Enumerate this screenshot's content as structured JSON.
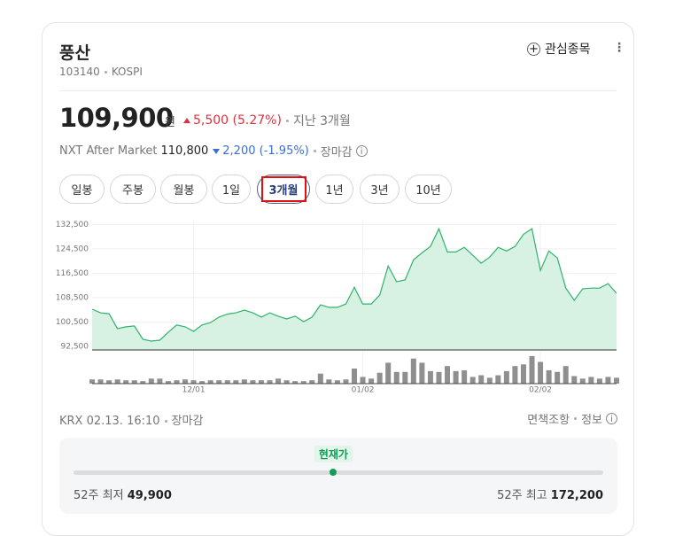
{
  "header": {
    "name": "풍산",
    "code": "103140",
    "market": "KOSPI",
    "watch": "관심종목"
  },
  "price": {
    "current": {
      "value": 109900,
      "label": "109,900"
    },
    "unit": "원",
    "change": "5,500 (5.27%)",
    "period": "지난 3개월"
  },
  "after_market": {
    "label": "NXT After Market",
    "price": "110,800",
    "change": "2,200 (-1.95%)",
    "status": "장마감"
  },
  "periods": {
    "options": [
      "일봉",
      "주봉",
      "월봉",
      "1일",
      "3개월",
      "1년",
      "3년",
      "10년"
    ],
    "selected": 4
  },
  "chart_data": {
    "type": "line",
    "categories": [
      null,
      null,
      null,
      null,
      null,
      null,
      null,
      null,
      null,
      null,
      null,
      null,
      "12/01",
      null,
      null,
      null,
      null,
      null,
      null,
      null,
      null,
      null,
      null,
      null,
      null,
      null,
      null,
      null,
      null,
      null,
      null,
      null,
      "01/02",
      null,
      null,
      null,
      null,
      null,
      null,
      null,
      null,
      null,
      null,
      null,
      null,
      null,
      null,
      null,
      null,
      null,
      null,
      null,
      null,
      "02/02",
      null,
      null,
      null,
      null,
      null,
      null,
      null,
      null,
      null
    ],
    "series": [
      {
        "color": "#2fb36b",
        "fill": "#d7f2e2",
        "values": [
          104680,
          103500,
          103200,
          98300,
          98900,
          99200,
          94800,
          94200,
          94500,
          97100,
          99500,
          98900,
          97400,
          99500,
          100300,
          102100,
          103100,
          103500,
          104400,
          103500,
          102100,
          103500,
          102400,
          101500,
          102400,
          100600,
          102100,
          106100,
          105300,
          105300,
          106400,
          111900,
          106400,
          106400,
          109300,
          118900,
          113700,
          114300,
          120900,
          123200,
          125300,
          131100,
          123500,
          123500,
          125000,
          122400,
          119800,
          121800,
          125000,
          123800,
          125300,
          129300,
          131100,
          117400,
          123800,
          121500,
          111600,
          107600,
          111400,
          111600,
          111600,
          113100,
          109900
        ]
      }
    ],
    "ylim": [
      91300,
      133500
    ],
    "yticks": [
      {
        "value": 92500,
        "label": "92,500"
      },
      {
        "value": 100500,
        "label": "100,500"
      },
      {
        "value": 108500,
        "label": "108,500"
      },
      {
        "value": 116500,
        "label": "116,500"
      },
      {
        "value": 124500,
        "label": "124,500"
      },
      {
        "value": 132500,
        "label": "132,500"
      }
    ],
    "grid": true,
    "volume": {
      "color": "#8f8f8f",
      "ylim": [
        0,
        35
      ],
      "values": [
        5,
        5,
        4,
        5,
        4,
        4,
        3,
        6,
        6,
        3,
        4,
        5,
        4,
        3,
        4,
        4,
        4,
        4,
        5,
        4,
        4,
        4,
        6,
        4,
        3,
        3,
        4,
        12,
        5,
        4,
        5,
        18,
        8,
        6,
        13,
        25,
        14,
        14,
        30,
        25,
        15,
        14,
        21,
        15,
        16,
        8,
        10,
        7,
        10,
        15,
        21,
        23,
        33,
        26,
        16,
        14,
        21,
        9,
        6,
        8,
        6,
        8,
        7
      ]
    }
  },
  "footer": {
    "time": "KRX 02.13. 16:10",
    "status": "장마감",
    "disclaimer": "면책조항",
    "info": "정보"
  },
  "range": {
    "current_label": "현재가",
    "low_label": "52주 최저",
    "low": {
      "value": 49900,
      "label": "49,900"
    },
    "high_label": "52주 최고",
    "high": {
      "value": 172200,
      "label": "172,200"
    }
  }
}
